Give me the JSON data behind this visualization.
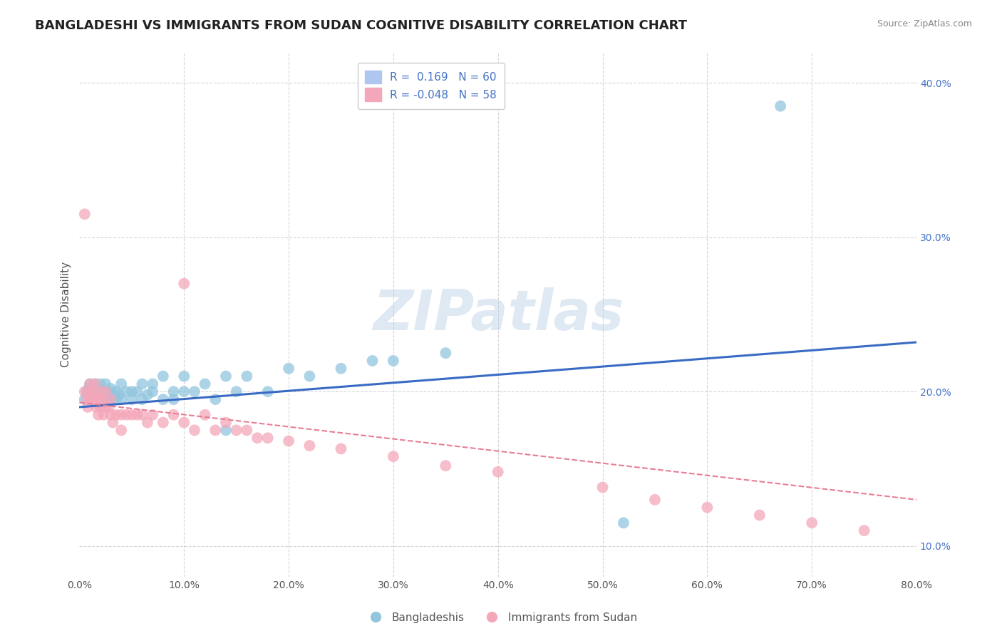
{
  "title": "BANGLADESHI VS IMMIGRANTS FROM SUDAN COGNITIVE DISABILITY CORRELATION CHART",
  "source": "Source: ZipAtlas.com",
  "ylabel": "Cognitive Disability",
  "xlim": [
    0.0,
    0.8
  ],
  "ylim": [
    0.08,
    0.42
  ],
  "xticks": [
    0.0,
    0.1,
    0.2,
    0.3,
    0.4,
    0.5,
    0.6,
    0.7,
    0.8
  ],
  "xticklabels": [
    "0.0%",
    "10.0%",
    "20.0%",
    "30.0%",
    "40.0%",
    "50.0%",
    "60.0%",
    "70.0%",
    "80.0%"
  ],
  "yticks_right": [
    0.1,
    0.2,
    0.3,
    0.4
  ],
  "yticklabels_right": [
    "10.0%",
    "20.0%",
    "30.0%",
    "40.0%"
  ],
  "blue_marker_color": "#92c5de",
  "pink_marker_color": "#f4a7b9",
  "watermark": "ZIPatlas",
  "grid_color": "#cccccc",
  "background_color": "#ffffff",
  "title_fontsize": 13,
  "axis_label_fontsize": 11,
  "tick_fontsize": 10,
  "legend_fontsize": 11,
  "legend_R_color": "#4472c4",
  "bottom_legend": [
    "Bangladeshis",
    "Immigrants from Sudan"
  ],
  "blue_trend_start_y": 0.19,
  "blue_trend_end_y": 0.232,
  "pink_trend_start_y": 0.193,
  "pink_trend_end_y": 0.13,
  "blue_scatter_x": [
    0.005,
    0.007,
    0.008,
    0.009,
    0.01,
    0.01,
    0.012,
    0.013,
    0.015,
    0.015,
    0.018,
    0.018,
    0.02,
    0.02,
    0.02,
    0.022,
    0.022,
    0.025,
    0.025,
    0.025,
    0.028,
    0.03,
    0.03,
    0.03,
    0.035,
    0.035,
    0.038,
    0.04,
    0.04,
    0.045,
    0.05,
    0.05,
    0.055,
    0.06,
    0.06,
    0.065,
    0.07,
    0.07,
    0.08,
    0.08,
    0.09,
    0.09,
    0.1,
    0.1,
    0.11,
    0.12,
    0.13,
    0.14,
    0.15,
    0.16,
    0.18,
    0.2,
    0.22,
    0.25,
    0.28,
    0.3,
    0.35,
    0.52,
    0.67,
    0.14
  ],
  "blue_scatter_y": [
    0.195,
    0.2,
    0.198,
    0.202,
    0.196,
    0.205,
    0.195,
    0.2,
    0.195,
    0.205,
    0.198,
    0.192,
    0.2,
    0.195,
    0.205,
    0.195,
    0.2,
    0.196,
    0.2,
    0.205,
    0.2,
    0.195,
    0.202,
    0.195,
    0.2,
    0.195,
    0.198,
    0.195,
    0.205,
    0.2,
    0.2,
    0.195,
    0.2,
    0.195,
    0.205,
    0.198,
    0.2,
    0.205,
    0.195,
    0.21,
    0.2,
    0.195,
    0.2,
    0.21,
    0.2,
    0.205,
    0.195,
    0.21,
    0.2,
    0.21,
    0.2,
    0.215,
    0.21,
    0.215,
    0.22,
    0.22,
    0.225,
    0.115,
    0.385,
    0.175
  ],
  "pink_scatter_x": [
    0.005,
    0.007,
    0.008,
    0.01,
    0.01,
    0.01,
    0.012,
    0.013,
    0.015,
    0.015,
    0.016,
    0.018,
    0.018,
    0.02,
    0.02,
    0.02,
    0.022,
    0.023,
    0.025,
    0.025,
    0.028,
    0.03,
    0.03,
    0.032,
    0.035,
    0.04,
    0.04,
    0.045,
    0.05,
    0.055,
    0.06,
    0.065,
    0.07,
    0.08,
    0.09,
    0.1,
    0.1,
    0.11,
    0.12,
    0.13,
    0.14,
    0.15,
    0.16,
    0.17,
    0.18,
    0.2,
    0.22,
    0.25,
    0.3,
    0.35,
    0.4,
    0.5,
    0.55,
    0.6,
    0.65,
    0.7,
    0.75,
    0.005
  ],
  "pink_scatter_y": [
    0.2,
    0.195,
    0.19,
    0.195,
    0.2,
    0.205,
    0.195,
    0.2,
    0.195,
    0.205,
    0.19,
    0.195,
    0.185,
    0.195,
    0.2,
    0.19,
    0.195,
    0.185,
    0.19,
    0.2,
    0.19,
    0.185,
    0.195,
    0.18,
    0.185,
    0.185,
    0.175,
    0.185,
    0.185,
    0.185,
    0.185,
    0.18,
    0.185,
    0.18,
    0.185,
    0.18,
    0.27,
    0.175,
    0.185,
    0.175,
    0.18,
    0.175,
    0.175,
    0.17,
    0.17,
    0.168,
    0.165,
    0.163,
    0.158,
    0.152,
    0.148,
    0.138,
    0.13,
    0.125,
    0.12,
    0.115,
    0.11,
    0.315
  ]
}
